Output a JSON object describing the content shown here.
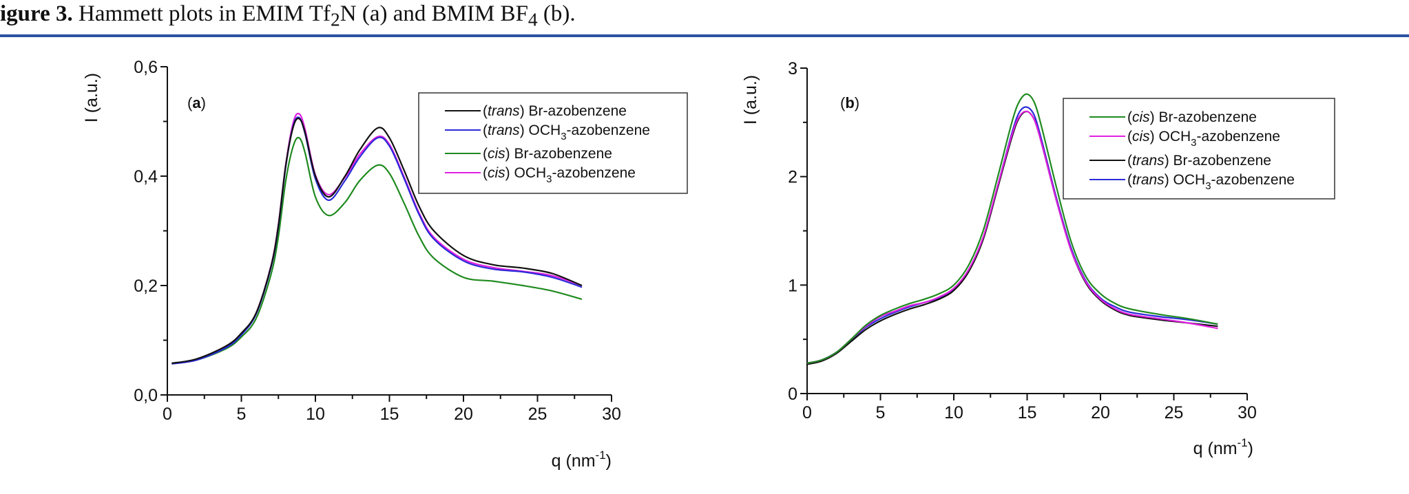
{
  "caption": {
    "label": "igure 3.",
    "text_parts": [
      "Hammett plots in EMIM Tf",
      "2",
      "N (a) and BMIM BF",
      "4",
      " (b)."
    ]
  },
  "colors": {
    "rule": "#2a52a0",
    "trans_br": "#111111",
    "trans_och3": "#2a2ad8",
    "cis_br": "#1f8a1f",
    "cis_och3": "#e020e0"
  },
  "chart_data": [
    {
      "id": "a",
      "type": "line",
      "panel_label": "a",
      "title": "",
      "xlabel": "q (nm-1)",
      "ylabel": "I (a.u.)",
      "xlim": [
        0,
        30
      ],
      "ylim": [
        0,
        0.6
      ],
      "xticks": [
        "0",
        "5",
        "10",
        "15",
        "20",
        "25",
        "30"
      ],
      "yticks": [
        "0,0",
        "0,2",
        "0,4",
        "0,6"
      ],
      "grid": false,
      "legend_position": "upper right",
      "x": [
        0.3,
        2,
        4,
        5,
        6,
        7,
        7.5,
        8,
        8.5,
        8.9,
        9.3,
        10,
        10.9,
        12,
        13,
        14.2,
        15,
        16,
        17,
        18,
        20,
        22,
        24,
        26,
        28
      ],
      "series": [
        {
          "name": "(trans) Br-azobenzene",
          "color_key": "trans_br",
          "values": [
            0.058,
            0.066,
            0.09,
            0.113,
            0.15,
            0.235,
            0.31,
            0.42,
            0.49,
            0.505,
            0.48,
            0.4,
            0.362,
            0.4,
            0.448,
            0.488,
            0.47,
            0.41,
            0.345,
            0.3,
            0.255,
            0.238,
            0.232,
            0.222,
            0.2
          ]
        },
        {
          "name": "(trans) OCH3-azobenzene",
          "color_key": "trans_och3",
          "values": [
            0.057,
            0.064,
            0.087,
            0.11,
            0.148,
            0.233,
            0.308,
            0.418,
            0.492,
            0.507,
            0.478,
            0.395,
            0.356,
            0.392,
            0.435,
            0.47,
            0.455,
            0.395,
            0.33,
            0.285,
            0.245,
            0.23,
            0.225,
            0.215,
            0.197
          ]
        },
        {
          "name": "(cis) Br-azobenzene",
          "color_key": "cis_br",
          "values": [
            0.057,
            0.064,
            0.085,
            0.106,
            0.14,
            0.22,
            0.29,
            0.392,
            0.455,
            0.47,
            0.443,
            0.362,
            0.328,
            0.352,
            0.392,
            0.42,
            0.405,
            0.35,
            0.29,
            0.25,
            0.215,
            0.208,
            0.2,
            0.19,
            0.175
          ]
        },
        {
          "name": "(cis) OCH3-azobenzene",
          "color_key": "cis_och3",
          "values": [
            0.057,
            0.064,
            0.088,
            0.111,
            0.15,
            0.236,
            0.312,
            0.422,
            0.498,
            0.514,
            0.486,
            0.402,
            0.366,
            0.398,
            0.44,
            0.472,
            0.458,
            0.398,
            0.333,
            0.288,
            0.248,
            0.233,
            0.226,
            0.218,
            0.2
          ]
        }
      ]
    },
    {
      "id": "b",
      "type": "line",
      "panel_label": "b",
      "title": "",
      "xlabel": "q (nm-1)",
      "ylabel": "I (a.u.)",
      "xlim": [
        0,
        30
      ],
      "ylim": [
        0,
        3
      ],
      "xticks": [
        "0",
        "5",
        "10",
        "15",
        "20",
        "25",
        "30"
      ],
      "yticks": [
        "0",
        "1",
        "2",
        "3"
      ],
      "grid": false,
      "legend_position": "upper right",
      "x": [
        0,
        1,
        2,
        3,
        4,
        5,
        6,
        7,
        8,
        9,
        10,
        11,
        12,
        13,
        14,
        14.5,
        15,
        15.5,
        16,
        17,
        18,
        19,
        20,
        21,
        22,
        24,
        26,
        28
      ],
      "series": [
        {
          "name": "(cis) Br-azobenzene",
          "color_key": "cis_br",
          "values": [
            0.28,
            0.31,
            0.38,
            0.5,
            0.63,
            0.72,
            0.78,
            0.83,
            0.87,
            0.92,
            1.0,
            1.18,
            1.5,
            2.0,
            2.52,
            2.7,
            2.76,
            2.68,
            2.45,
            1.9,
            1.4,
            1.08,
            0.92,
            0.83,
            0.78,
            0.73,
            0.69,
            0.64
          ]
        },
        {
          "name": "(cis) OCH3-azobenzene",
          "color_key": "cis_och3",
          "values": [
            0.28,
            0.31,
            0.38,
            0.5,
            0.62,
            0.71,
            0.76,
            0.81,
            0.84,
            0.89,
            0.97,
            1.14,
            1.44,
            1.92,
            2.4,
            2.56,
            2.6,
            2.52,
            2.3,
            1.78,
            1.32,
            1.03,
            0.87,
            0.78,
            0.73,
            0.69,
            0.65,
            0.6
          ]
        },
        {
          "name": "(trans) Br-azobenzene",
          "color_key": "trans_br",
          "values": [
            0.27,
            0.3,
            0.37,
            0.48,
            0.59,
            0.67,
            0.73,
            0.78,
            0.82,
            0.87,
            0.95,
            1.12,
            1.42,
            1.9,
            2.38,
            2.55,
            2.6,
            2.52,
            2.3,
            1.78,
            1.32,
            1.02,
            0.86,
            0.77,
            0.72,
            0.68,
            0.65,
            0.62
          ]
        },
        {
          "name": "(trans) OCH3-azobenzene",
          "color_key": "trans_och3",
          "values": [
            0.28,
            0.31,
            0.38,
            0.49,
            0.61,
            0.69,
            0.75,
            0.8,
            0.84,
            0.88,
            0.96,
            1.13,
            1.43,
            1.92,
            2.42,
            2.6,
            2.64,
            2.56,
            2.33,
            1.8,
            1.34,
            1.04,
            0.88,
            0.8,
            0.75,
            0.71,
            0.68,
            0.64
          ]
        }
      ]
    }
  ],
  "panels": {
    "a": {
      "ylabel": "I (a.u.)",
      "xlabel_main": "q (nm",
      "xlabel_sup": "-1",
      "xlabel_end": ")",
      "panel_label_open": "(",
      "panel_label_letter": "a",
      "panel_label_close": ")",
      "legend": [
        {
          "prefix": "(",
          "italic": "trans",
          "mid": ") ",
          "text": "Br-azobenzene",
          "sub": "",
          "tail": "",
          "color_key": "trans_br"
        },
        {
          "prefix": "(",
          "italic": "trans",
          "mid": ") ",
          "text": "OCH",
          "sub": "3",
          "tail": "-azobenzene",
          "color_key": "trans_och3"
        },
        {
          "prefix": "(",
          "italic": "cis",
          "mid": ") ",
          "text": "Br-azobenzene",
          "sub": "",
          "tail": "",
          "color_key": "cis_br"
        },
        {
          "prefix": "(",
          "italic": "cis",
          "mid": ") ",
          "text": "OCH",
          "sub": "3",
          "tail": "-azobenzene",
          "color_key": "cis_och3"
        }
      ]
    },
    "b": {
      "ylabel": "I (a.u.)",
      "xlabel_main": "q (nm",
      "xlabel_sup": "-1",
      "xlabel_end": ")",
      "panel_label_open": "(",
      "panel_label_letter": "b",
      "panel_label_close": ")",
      "legend": [
        {
          "prefix": "(",
          "italic": "cis",
          "mid": ") ",
          "text": "Br-azobenzene",
          "sub": "",
          "tail": "",
          "color_key": "cis_br"
        },
        {
          "prefix": "(",
          "italic": "cis",
          "mid": ") ",
          "text": "OCH",
          "sub": "3",
          "tail": "-azobenzene",
          "color_key": "cis_och3"
        },
        {
          "prefix": "(",
          "italic": "trans",
          "mid": ") ",
          "text": "Br-azobenzene",
          "sub": "",
          "tail": "",
          "color_key": "trans_br"
        },
        {
          "prefix": "(",
          "italic": "trans",
          "mid": ") ",
          "text": "OCH",
          "sub": "3",
          "tail": "-azobenzene",
          "color_key": "trans_och3"
        }
      ]
    }
  }
}
